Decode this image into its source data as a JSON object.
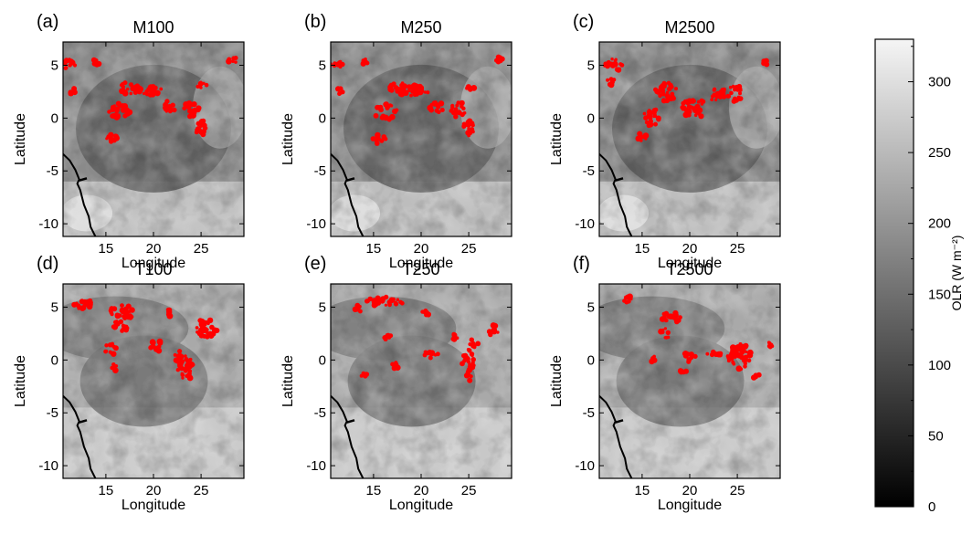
{
  "chart_data": {
    "type": "heatmap",
    "description_units": "OLR (W m⁻²)",
    "colorbar": {
      "label": "OLR (W m⁻²)",
      "range": [
        0,
        330
      ],
      "ticks": [
        0,
        50,
        100,
        150,
        200,
        250,
        300
      ],
      "tick_labels": [
        "0",
        "50",
        "100",
        "150",
        "200",
        "250",
        "300"
      ],
      "colormap": "gray"
    },
    "x_axis": {
      "label": "Longitude",
      "range": [
        10.5,
        29.5
      ],
      "ticks": [
        15,
        20,
        25
      ],
      "tick_labels": [
        "15",
        "20",
        "25"
      ]
    },
    "y_axis": {
      "label": "Latitude",
      "range": [
        -11.2,
        7.2
      ],
      "ticks": [
        -10,
        -5,
        0,
        5
      ],
      "tick_labels": [
        "-10",
        "-5",
        "0",
        "5"
      ]
    },
    "marker_color": "#ff0000",
    "coastline_color": "#000000",
    "panels": [
      {
        "tag": "(a)",
        "title": "M100",
        "clusters": [
          {
            "lon": 11.2,
            "lat": 5.1,
            "rx": 0.8,
            "ry": 0.5
          },
          {
            "lon": 14.0,
            "lat": 5.3,
            "rx": 0.4,
            "ry": 0.3
          },
          {
            "lon": 17.5,
            "lat": 2.8,
            "rx": 1.3,
            "ry": 0.6
          },
          {
            "lon": 19.3,
            "lat": 2.6,
            "rx": 1.6,
            "ry": 0.5
          },
          {
            "lon": 16.3,
            "lat": 0.6,
            "rx": 1.2,
            "ry": 0.8
          },
          {
            "lon": 15.6,
            "lat": -2.0,
            "rx": 0.7,
            "ry": 0.5
          },
          {
            "lon": 21.5,
            "lat": 1.0,
            "rx": 0.8,
            "ry": 0.6
          },
          {
            "lon": 23.9,
            "lat": 0.8,
            "rx": 0.9,
            "ry": 0.7
          },
          {
            "lon": 25.0,
            "lat": -1.0,
            "rx": 0.6,
            "ry": 0.8
          },
          {
            "lon": 25.2,
            "lat": 3.0,
            "rx": 0.6,
            "ry": 0.4
          },
          {
            "lon": 28.3,
            "lat": 5.5,
            "rx": 0.5,
            "ry": 0.3
          },
          {
            "lon": 11.5,
            "lat": 2.5,
            "rx": 0.3,
            "ry": 0.4
          }
        ]
      },
      {
        "tag": "(b)",
        "title": "M250",
        "clusters": [
          {
            "lon": 11.2,
            "lat": 5.1,
            "rx": 0.8,
            "ry": 0.5
          },
          {
            "lon": 14.0,
            "lat": 5.3,
            "rx": 0.4,
            "ry": 0.3
          },
          {
            "lon": 17.5,
            "lat": 2.8,
            "rx": 1.3,
            "ry": 0.6
          },
          {
            "lon": 19.3,
            "lat": 2.6,
            "rx": 1.6,
            "ry": 0.5
          },
          {
            "lon": 16.3,
            "lat": 0.6,
            "rx": 1.2,
            "ry": 0.8
          },
          {
            "lon": 15.6,
            "lat": -2.0,
            "rx": 0.7,
            "ry": 0.5
          },
          {
            "lon": 21.5,
            "lat": 1.0,
            "rx": 0.8,
            "ry": 0.6
          },
          {
            "lon": 23.9,
            "lat": 0.8,
            "rx": 0.9,
            "ry": 0.7
          },
          {
            "lon": 25.0,
            "lat": -1.0,
            "rx": 0.6,
            "ry": 0.8
          },
          {
            "lon": 25.2,
            "lat": 3.0,
            "rx": 0.6,
            "ry": 0.4
          },
          {
            "lon": 28.3,
            "lat": 5.5,
            "rx": 0.5,
            "ry": 0.3
          },
          {
            "lon": 11.5,
            "lat": 2.5,
            "rx": 0.3,
            "ry": 0.4
          }
        ]
      },
      {
        "tag": "(c)",
        "title": "M2500",
        "clusters": [
          {
            "lon": 12.0,
            "lat": 5.0,
            "rx": 1.0,
            "ry": 0.6
          },
          {
            "lon": 11.8,
            "lat": 3.5,
            "rx": 0.5,
            "ry": 0.4
          },
          {
            "lon": 17.5,
            "lat": 2.5,
            "rx": 1.2,
            "ry": 0.9
          },
          {
            "lon": 16.0,
            "lat": 0.2,
            "rx": 0.8,
            "ry": 1.0
          },
          {
            "lon": 15.0,
            "lat": -1.8,
            "rx": 0.5,
            "ry": 0.6
          },
          {
            "lon": 20.5,
            "lat": 1.0,
            "rx": 1.3,
            "ry": 1.0
          },
          {
            "lon": 23.0,
            "lat": 2.2,
            "rx": 1.0,
            "ry": 0.7
          },
          {
            "lon": 24.8,
            "lat": 2.3,
            "rx": 0.8,
            "ry": 0.8
          },
          {
            "lon": 28.0,
            "lat": 5.2,
            "rx": 0.3,
            "ry": 0.3
          }
        ]
      },
      {
        "tag": "(d)",
        "title": "T100",
        "clusters": [
          {
            "lon": 12.5,
            "lat": 5.3,
            "rx": 1.0,
            "ry": 0.6
          },
          {
            "lon": 16.7,
            "lat": 4.5,
            "rx": 1.3,
            "ry": 0.7
          },
          {
            "lon": 16.5,
            "lat": 3.2,
            "rx": 1.0,
            "ry": 0.5
          },
          {
            "lon": 15.5,
            "lat": 1.0,
            "rx": 0.6,
            "ry": 0.6
          },
          {
            "lon": 15.8,
            "lat": -0.8,
            "rx": 0.5,
            "ry": 0.4
          },
          {
            "lon": 20.3,
            "lat": 1.3,
            "rx": 0.6,
            "ry": 0.6
          },
          {
            "lon": 23.5,
            "lat": -0.8,
            "rx": 1.0,
            "ry": 1.0
          },
          {
            "lon": 25.5,
            "lat": 3.0,
            "rx": 1.2,
            "ry": 0.9
          },
          {
            "lon": 21.5,
            "lat": 4.5,
            "rx": 0.5,
            "ry": 0.4
          },
          {
            "lon": 22.8,
            "lat": 0.3,
            "rx": 0.6,
            "ry": 0.6
          }
        ]
      },
      {
        "tag": "(e)",
        "title": "T250",
        "clusters": [
          {
            "lon": 16.2,
            "lat": 5.5,
            "rx": 2.0,
            "ry": 0.5
          },
          {
            "lon": 13.5,
            "lat": 4.9,
            "rx": 0.5,
            "ry": 0.3
          },
          {
            "lon": 16.5,
            "lat": 2.2,
            "rx": 0.4,
            "ry": 0.3
          },
          {
            "lon": 20.5,
            "lat": 4.5,
            "rx": 0.5,
            "ry": 0.3
          },
          {
            "lon": 21.0,
            "lat": 0.5,
            "rx": 0.8,
            "ry": 0.4
          },
          {
            "lon": 25.0,
            "lat": -0.5,
            "rx": 0.7,
            "ry": 1.5
          },
          {
            "lon": 25.5,
            "lat": 1.5,
            "rx": 0.5,
            "ry": 0.5
          },
          {
            "lon": 27.5,
            "lat": 2.8,
            "rx": 0.6,
            "ry": 0.5
          },
          {
            "lon": 14.0,
            "lat": -1.3,
            "rx": 0.4,
            "ry": 0.3
          },
          {
            "lon": 17.3,
            "lat": -0.5,
            "rx": 0.4,
            "ry": 0.3
          },
          {
            "lon": 23.5,
            "lat": 2.2,
            "rx": 0.4,
            "ry": 0.3
          }
        ]
      },
      {
        "tag": "(f)",
        "title": "T2500",
        "clusters": [
          {
            "lon": 13.5,
            "lat": 5.8,
            "rx": 0.6,
            "ry": 0.4
          },
          {
            "lon": 18.0,
            "lat": 4.0,
            "rx": 1.0,
            "ry": 0.6
          },
          {
            "lon": 17.5,
            "lat": 2.5,
            "rx": 0.6,
            "ry": 0.5
          },
          {
            "lon": 16.0,
            "lat": 0.2,
            "rx": 0.4,
            "ry": 0.4
          },
          {
            "lon": 20.0,
            "lat": 0.3,
            "rx": 0.8,
            "ry": 0.5
          },
          {
            "lon": 22.5,
            "lat": 0.5,
            "rx": 0.8,
            "ry": 0.4
          },
          {
            "lon": 25.3,
            "lat": 0.3,
            "rx": 1.3,
            "ry": 1.2
          },
          {
            "lon": 19.5,
            "lat": -1.0,
            "rx": 0.5,
            "ry": 0.4
          },
          {
            "lon": 27.0,
            "lat": -1.5,
            "rx": 0.4,
            "ry": 0.3
          },
          {
            "lon": 28.5,
            "lat": 1.5,
            "rx": 0.3,
            "ry": 0.3
          }
        ]
      }
    ]
  }
}
